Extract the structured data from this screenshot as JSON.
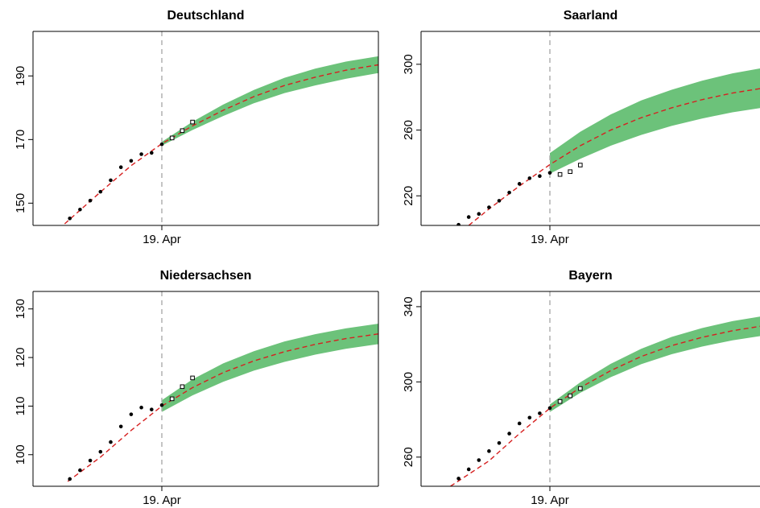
{
  "colors": {
    "band": "#6cc27a",
    "fit_line": "#d62020",
    "filled_points": "#000000",
    "vertical_line": "#aaaaaa"
  },
  "chart_data": [
    {
      "type": "line",
      "title": "Deutschland",
      "xlabel": "",
      "ylabel": "",
      "x_tick_labels": [
        "19. Apr"
      ],
      "y_ticks": [
        150,
        170,
        190
      ],
      "ylim": [
        143,
        204
      ],
      "grid": false,
      "cutoff_day": 0,
      "x_range_days": [
        -10,
        22
      ],
      "observed_before": [
        {
          "x": -9,
          "y": 145.2
        },
        {
          "x": -8,
          "y": 148.0
        },
        {
          "x": -7,
          "y": 150.8
        },
        {
          "x": -6,
          "y": 153.6
        },
        {
          "x": -5,
          "y": 157.2
        },
        {
          "x": -4,
          "y": 161.3
        },
        {
          "x": -3,
          "y": 163.3
        },
        {
          "x": -2,
          "y": 165.4
        },
        {
          "x": -1,
          "y": 165.8
        },
        {
          "x": 0,
          "y": 168.5
        }
      ],
      "observed_after": [
        {
          "x": 1,
          "y": 170.5
        },
        {
          "x": 2,
          "y": 172.8
        },
        {
          "x": 3,
          "y": 175.5
        }
      ],
      "fit_line": [
        {
          "x": -9.5,
          "y": 143.5
        },
        {
          "x": -6,
          "y": 153.5
        },
        {
          "x": -3,
          "y": 161.8
        },
        {
          "x": 0,
          "y": 168.7
        },
        {
          "x": 3,
          "y": 174.3
        },
        {
          "x": 6,
          "y": 179.2
        },
        {
          "x": 9,
          "y": 183.5
        },
        {
          "x": 12,
          "y": 187.0
        },
        {
          "x": 15,
          "y": 189.6
        },
        {
          "x": 18,
          "y": 191.8
        },
        {
          "x": 21,
          "y": 193.4
        },
        {
          "x": 22,
          "y": 193.8
        }
      ],
      "band_upper": [
        {
          "x": 0,
          "y": 169.3
        },
        {
          "x": 3,
          "y": 175.6
        },
        {
          "x": 6,
          "y": 181.0
        },
        {
          "x": 9,
          "y": 185.6
        },
        {
          "x": 12,
          "y": 189.4
        },
        {
          "x": 15,
          "y": 192.3
        },
        {
          "x": 18,
          "y": 194.5
        },
        {
          "x": 21,
          "y": 196.1
        },
        {
          "x": 22,
          "y": 196.5
        }
      ],
      "band_lower": [
        {
          "x": 0,
          "y": 168.1
        },
        {
          "x": 3,
          "y": 173.0
        },
        {
          "x": 6,
          "y": 177.4
        },
        {
          "x": 9,
          "y": 181.4
        },
        {
          "x": 12,
          "y": 184.6
        },
        {
          "x": 15,
          "y": 187.0
        },
        {
          "x": 18,
          "y": 189.1
        },
        {
          "x": 21,
          "y": 190.8
        },
        {
          "x": 22,
          "y": 191.2
        }
      ]
    },
    {
      "type": "line",
      "title": "Saarland",
      "xlabel": "",
      "ylabel": "",
      "x_tick_labels": [
        "19. Apr"
      ],
      "y_ticks": [
        220,
        260,
        300
      ],
      "ylim": [
        202,
        320
      ],
      "grid": false,
      "cutoff_day": 0,
      "x_range_days": [
        -10,
        22
      ],
      "observed_before": [
        {
          "x": -9,
          "y": 202.4
        },
        {
          "x": -8,
          "y": 207.1
        },
        {
          "x": -7,
          "y": 209.0
        },
        {
          "x": -6,
          "y": 213.0
        },
        {
          "x": -5,
          "y": 217.0
        },
        {
          "x": -4,
          "y": 222.0
        },
        {
          "x": -3,
          "y": 227.3
        },
        {
          "x": -2,
          "y": 230.7
        },
        {
          "x": -1,
          "y": 232.0
        },
        {
          "x": 0,
          "y": 234.0
        }
      ],
      "observed_after": [
        {
          "x": 1,
          "y": 233.0
        },
        {
          "x": 2,
          "y": 234.7
        },
        {
          "x": 3,
          "y": 238.7
        }
      ],
      "fit_line": [
        {
          "x": -8,
          "y": 202.0
        },
        {
          "x": -6,
          "y": 212.0
        },
        {
          "x": -3,
          "y": 226.0
        },
        {
          "x": 0,
          "y": 239.0
        },
        {
          "x": 3,
          "y": 250.5
        },
        {
          "x": 6,
          "y": 260.0
        },
        {
          "x": 9,
          "y": 267.5
        },
        {
          "x": 12,
          "y": 273.5
        },
        {
          "x": 15,
          "y": 278.5
        },
        {
          "x": 18,
          "y": 282.5
        },
        {
          "x": 21,
          "y": 285.5
        },
        {
          "x": 22,
          "y": 286.2
        }
      ],
      "band_upper": [
        {
          "x": 0,
          "y": 246.0
        },
        {
          "x": 3,
          "y": 259.0
        },
        {
          "x": 6,
          "y": 269.5
        },
        {
          "x": 9,
          "y": 278.0
        },
        {
          "x": 12,
          "y": 284.5
        },
        {
          "x": 15,
          "y": 290.0
        },
        {
          "x": 18,
          "y": 294.5
        },
        {
          "x": 21,
          "y": 297.8
        },
        {
          "x": 22,
          "y": 298.6
        }
      ],
      "band_lower": [
        {
          "x": 0,
          "y": 233.5
        },
        {
          "x": 3,
          "y": 242.5
        },
        {
          "x": 6,
          "y": 250.5
        },
        {
          "x": 9,
          "y": 257.0
        },
        {
          "x": 12,
          "y": 262.5
        },
        {
          "x": 15,
          "y": 267.0
        },
        {
          "x": 18,
          "y": 270.8
        },
        {
          "x": 21,
          "y": 273.6
        },
        {
          "x": 22,
          "y": 274.4
        }
      ]
    },
    {
      "type": "line",
      "title": "Niedersachsen",
      "xlabel": "",
      "ylabel": "",
      "x_tick_labels": [
        "19. Apr"
      ],
      "y_ticks": [
        100,
        110,
        120,
        130
      ],
      "ylim": [
        93.5,
        133.6
      ],
      "grid": false,
      "cutoff_day": 0,
      "x_range_days": [
        -10,
        22
      ],
      "observed_before": [
        {
          "x": -9,
          "y": 95.0
        },
        {
          "x": -8,
          "y": 96.8
        },
        {
          "x": -7,
          "y": 98.8
        },
        {
          "x": -6,
          "y": 100.6
        },
        {
          "x": -5,
          "y": 102.6
        },
        {
          "x": -4,
          "y": 105.8
        },
        {
          "x": -3,
          "y": 108.3
        },
        {
          "x": -2,
          "y": 109.7
        },
        {
          "x": -1,
          "y": 109.3
        },
        {
          "x": 0,
          "y": 110.2
        }
      ],
      "observed_after": [
        {
          "x": 1,
          "y": 111.5
        },
        {
          "x": 2,
          "y": 114.0
        },
        {
          "x": 3,
          "y": 115.8
        }
      ],
      "fit_line": [
        {
          "x": -9.2,
          "y": 94.5
        },
        {
          "x": -6,
          "y": 99.5
        },
        {
          "x": -3,
          "y": 105.0
        },
        {
          "x": 0,
          "y": 110.0
        },
        {
          "x": 3,
          "y": 113.8
        },
        {
          "x": 6,
          "y": 116.9
        },
        {
          "x": 9,
          "y": 119.3
        },
        {
          "x": 12,
          "y": 121.2
        },
        {
          "x": 15,
          "y": 122.7
        },
        {
          "x": 18,
          "y": 123.9
        },
        {
          "x": 21,
          "y": 124.8
        },
        {
          "x": 22,
          "y": 125.1
        }
      ],
      "band_upper": [
        {
          "x": 0,
          "y": 111.2
        },
        {
          "x": 3,
          "y": 115.5
        },
        {
          "x": 6,
          "y": 118.8
        },
        {
          "x": 9,
          "y": 121.3
        },
        {
          "x": 12,
          "y": 123.3
        },
        {
          "x": 15,
          "y": 124.8
        },
        {
          "x": 18,
          "y": 126.0
        },
        {
          "x": 21,
          "y": 126.9
        },
        {
          "x": 22,
          "y": 127.2
        }
      ],
      "band_lower": [
        {
          "x": 0,
          "y": 108.8
        },
        {
          "x": 3,
          "y": 112.2
        },
        {
          "x": 6,
          "y": 115.0
        },
        {
          "x": 9,
          "y": 117.3
        },
        {
          "x": 12,
          "y": 119.1
        },
        {
          "x": 15,
          "y": 120.6
        },
        {
          "x": 18,
          "y": 121.8
        },
        {
          "x": 21,
          "y": 122.7
        },
        {
          "x": 22,
          "y": 123.0
        }
      ]
    },
    {
      "type": "line",
      "title": "Bayern",
      "xlabel": "",
      "ylabel": "",
      "x_tick_labels": [
        "19. Apr"
      ],
      "y_ticks": [
        260,
        300,
        340
      ],
      "ylim": [
        244.5,
        348.1
      ],
      "grid": false,
      "cutoff_day": 0,
      "x_range_days": [
        -10,
        22
      ],
      "observed_before": [
        {
          "x": -9,
          "y": 248.6
        },
        {
          "x": -8,
          "y": 253.5
        },
        {
          "x": -7,
          "y": 258.4
        },
        {
          "x": -6,
          "y": 263.2
        },
        {
          "x": -5,
          "y": 267.5
        },
        {
          "x": -4,
          "y": 272.5
        },
        {
          "x": -3,
          "y": 277.9
        },
        {
          "x": -2,
          "y": 281.0
        },
        {
          "x": -1,
          "y": 283.3
        },
        {
          "x": 0,
          "y": 286.1
        }
      ],
      "observed_after": [
        {
          "x": 1,
          "y": 289.6
        },
        {
          "x": 2,
          "y": 292.6
        },
        {
          "x": 3,
          "y": 296.5
        }
      ],
      "fit_line": [
        {
          "x": -9.8,
          "y": 244.5
        },
        {
          "x": -6,
          "y": 258.0
        },
        {
          "x": -3,
          "y": 272.5
        },
        {
          "x": 0,
          "y": 286.0
        },
        {
          "x": 3,
          "y": 297.0
        },
        {
          "x": 6,
          "y": 306.0
        },
        {
          "x": 9,
          "y": 313.5
        },
        {
          "x": 12,
          "y": 319.3
        },
        {
          "x": 15,
          "y": 323.7
        },
        {
          "x": 18,
          "y": 327.2
        },
        {
          "x": 21,
          "y": 329.8
        },
        {
          "x": 22,
          "y": 330.5
        }
      ],
      "band_upper": [
        {
          "x": 0,
          "y": 288.0
        },
        {
          "x": 3,
          "y": 299.8
        },
        {
          "x": 6,
          "y": 309.6
        },
        {
          "x": 9,
          "y": 317.6
        },
        {
          "x": 12,
          "y": 323.9
        },
        {
          "x": 15,
          "y": 328.6
        },
        {
          "x": 18,
          "y": 332.3
        },
        {
          "x": 21,
          "y": 335.0
        },
        {
          "x": 22,
          "y": 335.8
        }
      ],
      "band_lower": [
        {
          "x": 0,
          "y": 284.0
        },
        {
          "x": 3,
          "y": 294.2
        },
        {
          "x": 6,
          "y": 302.5
        },
        {
          "x": 9,
          "y": 309.4
        },
        {
          "x": 12,
          "y": 314.7
        },
        {
          "x": 15,
          "y": 318.8
        },
        {
          "x": 18,
          "y": 322.1
        },
        {
          "x": 21,
          "y": 324.6
        },
        {
          "x": 22,
          "y": 325.2
        }
      ]
    }
  ]
}
